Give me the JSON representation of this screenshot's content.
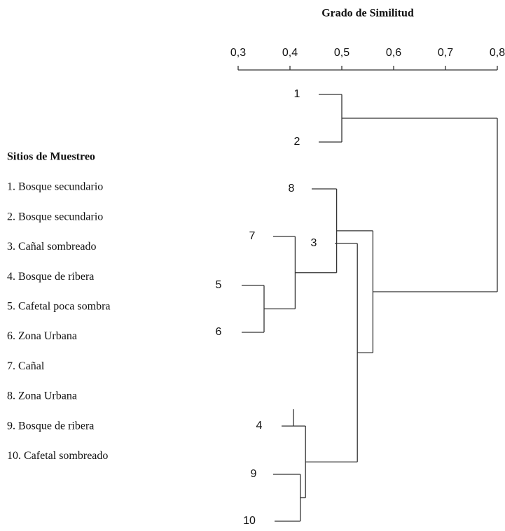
{
  "chart_data": {
    "type": "dendrogram",
    "title": "Grado de Similitud",
    "xlim": [
      0.3,
      0.8
    ],
    "xticks": [
      {
        "value": 0.3,
        "label": "0,3"
      },
      {
        "value": 0.4,
        "label": "0,4"
      },
      {
        "value": 0.5,
        "label": "0,5"
      },
      {
        "value": 0.6,
        "label": "0,6"
      },
      {
        "value": 0.7,
        "label": "0,7"
      },
      {
        "value": 0.8,
        "label": "0,8"
      }
    ],
    "tree": {
      "height": 0.8,
      "children": [
        {
          "height": 0.5,
          "children": [
            "1",
            "2"
          ]
        },
        {
          "height": 0.56,
          "children": [
            {
              "height": 0.49,
              "children": [
                "8",
                {
                  "height": 0.41,
                  "children": [
                    "7",
                    {
                      "height": 0.35,
                      "children": [
                        "5",
                        "6"
                      ]
                    }
                  ]
                }
              ]
            },
            {
              "height": 0.53,
              "children": [
                "3",
                {
                  "height": 0.43,
                  "children": [
                    "4",
                    {
                      "height": 0.42,
                      "children": [
                        "9",
                        "10"
                      ]
                    }
                  ]
                }
              ]
            }
          ]
        }
      ]
    },
    "legend": {
      "title": "Sitios de Muestreo",
      "items": [
        "1. Bosque secundario",
        "2. Bosque secundario",
        "3. Cañal sombreado",
        "4. Bosque de ribera",
        "5. Cafetal poca sombra",
        "6. Zona Urbana",
        "7. Cañal",
        "8. Zona Urbana",
        "9. Bosque de ribera",
        "10. Cafetal sombreado"
      ]
    }
  }
}
